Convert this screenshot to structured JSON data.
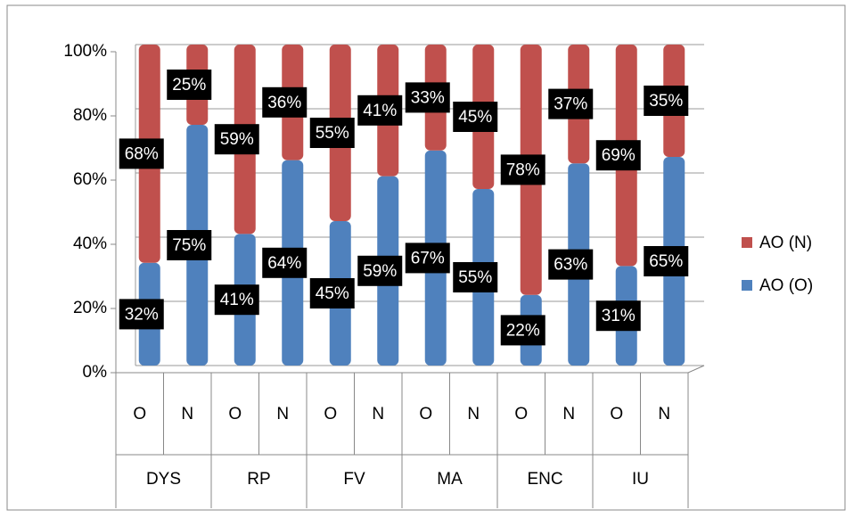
{
  "chart_data": {
    "type": "stacked_bar",
    "categories": [
      "O",
      "N",
      "O",
      "N",
      "O",
      "N",
      "O",
      "N",
      "O",
      "N",
      "O",
      "N"
    ],
    "groups": [
      "DYS",
      "RP",
      "FV",
      "MA",
      "ENC",
      "IU"
    ],
    "series": [
      {
        "name": "AO (O)",
        "color": "#4f81bd",
        "values": [
          32,
          75,
          41,
          64,
          45,
          59,
          67,
          55,
          22,
          63,
          31,
          65
        ],
        "value_labels": [
          "32%",
          "75%",
          "41%",
          "64%",
          "45%",
          "59%",
          "67%",
          "55%",
          "22%",
          "63%",
          "31%",
          "65%"
        ]
      },
      {
        "name": "AO (N)",
        "color": "#c0504d",
        "values": [
          68,
          25,
          59,
          36,
          55,
          41,
          33,
          45,
          78,
          37,
          69,
          35
        ],
        "value_labels": [
          "68%",
          "25%",
          "59%",
          "36%",
          "55%",
          "41%",
          "33%",
          "45%",
          "78%",
          "37%",
          "69%",
          "35%"
        ]
      }
    ],
    "ylim": [
      0,
      100
    ],
    "yticks": [
      {
        "value": 0,
        "label": "0%"
      },
      {
        "value": 20,
        "label": "20%"
      },
      {
        "value": 40,
        "label": "40%"
      },
      {
        "value": 60,
        "label": "60%"
      },
      {
        "value": 80,
        "label": "80%"
      },
      {
        "value": 100,
        "label": "100%"
      }
    ],
    "grid": true,
    "legend": "right"
  }
}
